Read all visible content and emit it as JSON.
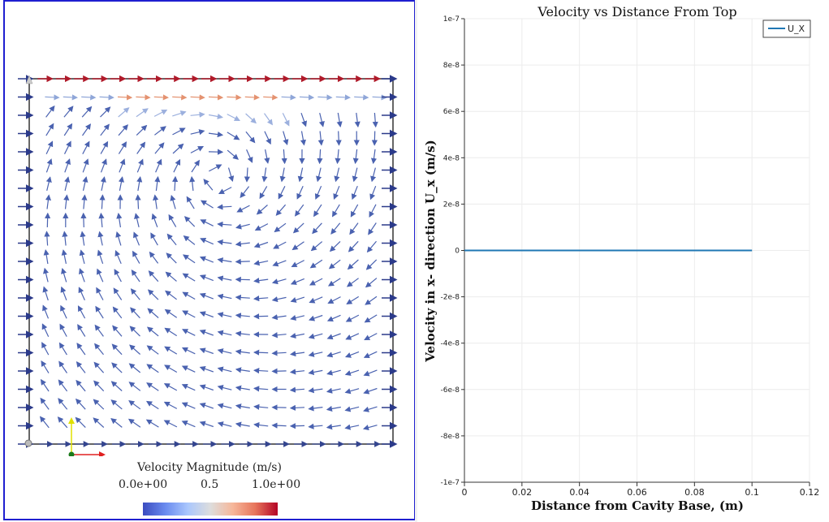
{
  "left_view": {
    "legend": {
      "title": "Velocity  Magnitude (m/s)",
      "ticks": [
        "0.0e+00",
        "0.5",
        "1.0e+00"
      ]
    },
    "colormap": [
      "#3b4cc0",
      "#6a8bef",
      "#aac7fd",
      "#dddddd",
      "#f6b79a",
      "#e7755b",
      "#b40426"
    ]
  },
  "chart_data": {
    "type": "line",
    "title": "Velocity vs Distance From Top",
    "xlabel": "Distance from Cavity Base, (m)",
    "ylabel": "Velocity in x- direction U_x (m/s)",
    "xlim": [
      0,
      0.12
    ],
    "ylim": [
      -1e-07,
      1e-07
    ],
    "x_ticks": [
      "0",
      "0.02",
      "0.04",
      "0.06",
      "0.08",
      "0.1",
      "0.12"
    ],
    "y_ticks": [
      "1e-7",
      "8e-8",
      "6e-8",
      "4e-8",
      "2e-8",
      "0",
      "-2e-8",
      "-4e-8",
      "-6e-8",
      "-8e-8",
      "-1e-7"
    ],
    "grid": true,
    "legend_position": "top-right",
    "series": [
      {
        "name": "U_X",
        "color": "#1f77b4",
        "x": [
          0,
          0.1
        ],
        "y": [
          0,
          0
        ]
      }
    ]
  }
}
